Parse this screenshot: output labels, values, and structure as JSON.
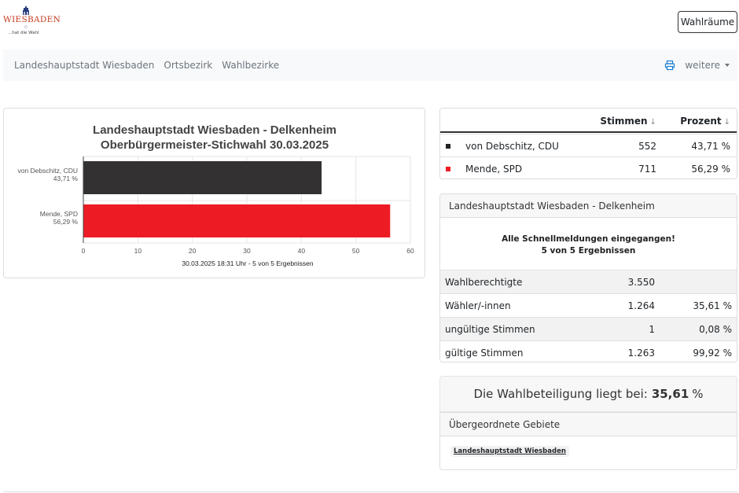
{
  "logo": {
    "word": "WIESBADEN",
    "tagline": "...hat die Wahl"
  },
  "header": {
    "button_label": "Wahlräume"
  },
  "nav": {
    "links": [
      "Landeshauptstadt Wiesbaden",
      "Ortsbezirk",
      "Wahlbezirke"
    ],
    "more_label": "weitere"
  },
  "chart_data": {
    "type": "bar",
    "orientation": "horizontal",
    "title": "Landeshauptstadt Wiesbaden - Delkenheim",
    "subtitle": "Oberbürgermeister-Stichwahl 30.03.2025",
    "categories": [
      "von Debschitz, CDU",
      "Mende, SPD"
    ],
    "category_sublabels": [
      "43,71 %",
      "56,29 %"
    ],
    "values": [
      43.71,
      56.29
    ],
    "colors": [
      "#333132",
      "#ed1c24"
    ],
    "xlim": [
      0,
      60
    ],
    "xticks": [
      "0",
      "10",
      "20",
      "30",
      "40",
      "50",
      "60"
    ],
    "grid": true,
    "footnote": "30.03.2025 18:31 Uhr - 5 von 5 Ergebnissen"
  },
  "results": {
    "columns": [
      "Stimmen",
      "Prozent"
    ],
    "sort_icon": "↓",
    "rows": [
      {
        "name": "von Debschitz, CDU",
        "votes": "552",
        "percent": "43,71 %",
        "color": "#222222"
      },
      {
        "name": "Mende, SPD",
        "votes": "711",
        "percent": "56,29 %",
        "color": "#ed1c24"
      }
    ]
  },
  "info": {
    "title": "Landeshauptstadt Wiesbaden - Delkenheim",
    "message_line1": "Alle Schnellmeldungen eingegangen!",
    "message_line2": "5 von 5 Ergebnissen",
    "rows": [
      {
        "label": "Wahlberechtigte",
        "value": "3.550",
        "percent": ""
      },
      {
        "label": "Wähler/-innen",
        "value": "1.264",
        "percent": "35,61 %"
      },
      {
        "label": "ungültige Stimmen",
        "value": "1",
        "percent": "0,08 %"
      },
      {
        "label": "gültige Stimmen",
        "value": "1.263",
        "percent": "99,92 %"
      }
    ]
  },
  "turnout": {
    "text": "Die Wahlbeteiligung liegt bei:",
    "value": "35,61",
    "unit": "%"
  },
  "parent": {
    "title": "Übergeordnete Gebiete",
    "link": "Landeshauptstadt Wiesbaden"
  },
  "icons": {
    "print": "printer-icon",
    "caret": "caret-down-icon"
  },
  "colors": {
    "accent": "#1a7fd1",
    "cdu": "#333132",
    "spd": "#ed1c24"
  }
}
